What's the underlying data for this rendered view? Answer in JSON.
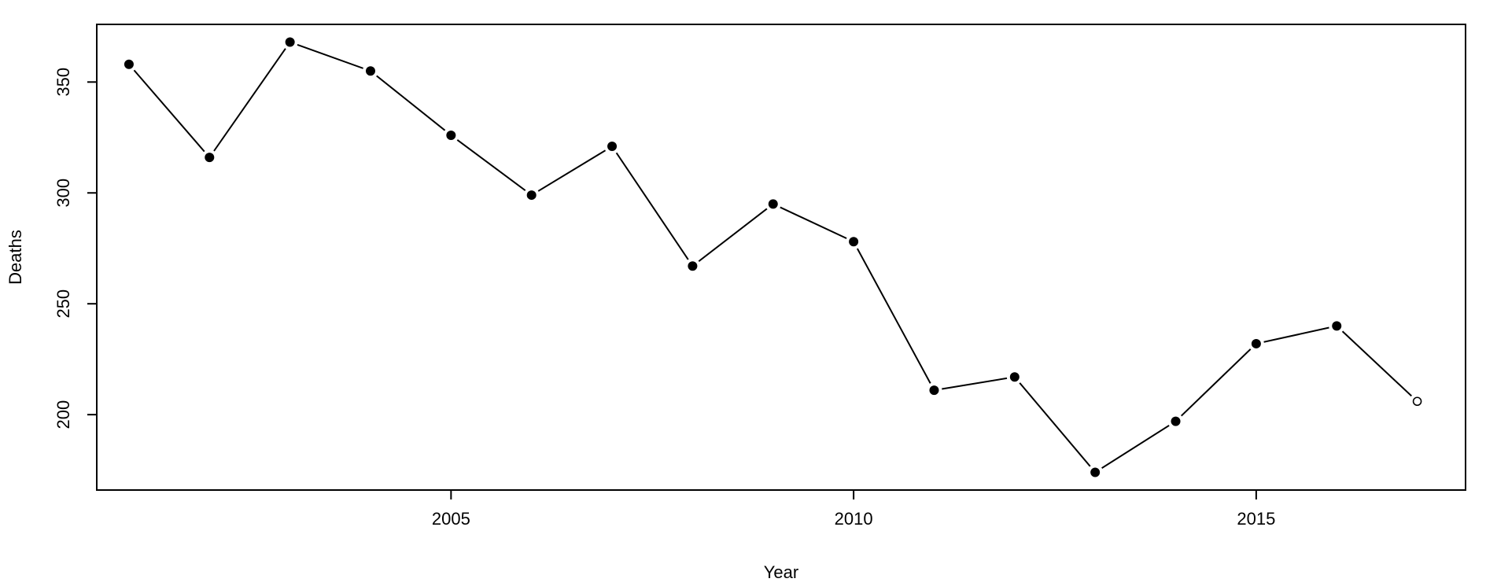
{
  "chart_data": {
    "type": "line",
    "title": "",
    "xlabel": "Year",
    "ylabel": "Deaths",
    "xlim": [
      2000.6,
      2017.6
    ],
    "ylim": [
      166,
      376
    ],
    "x_ticks": [
      2005,
      2010,
      2015
    ],
    "y_ticks": [
      200,
      250,
      300,
      350
    ],
    "grid": false,
    "legend": "none",
    "series": [
      {
        "x": [
          2001,
          2002,
          2003,
          2004,
          2005,
          2006,
          2007,
          2008,
          2009,
          2010,
          2011,
          2012,
          2013,
          2014,
          2015,
          2016,
          2017
        ],
        "values": [
          358,
          316,
          368,
          355,
          326,
          299,
          321,
          267,
          295,
          278,
          211,
          217,
          174,
          197,
          232,
          240,
          206
        ],
        "open_points": [
          2017
        ]
      }
    ],
    "colors": {
      "line": "#000000",
      "point": "#000000",
      "background": "#ffffff"
    }
  }
}
